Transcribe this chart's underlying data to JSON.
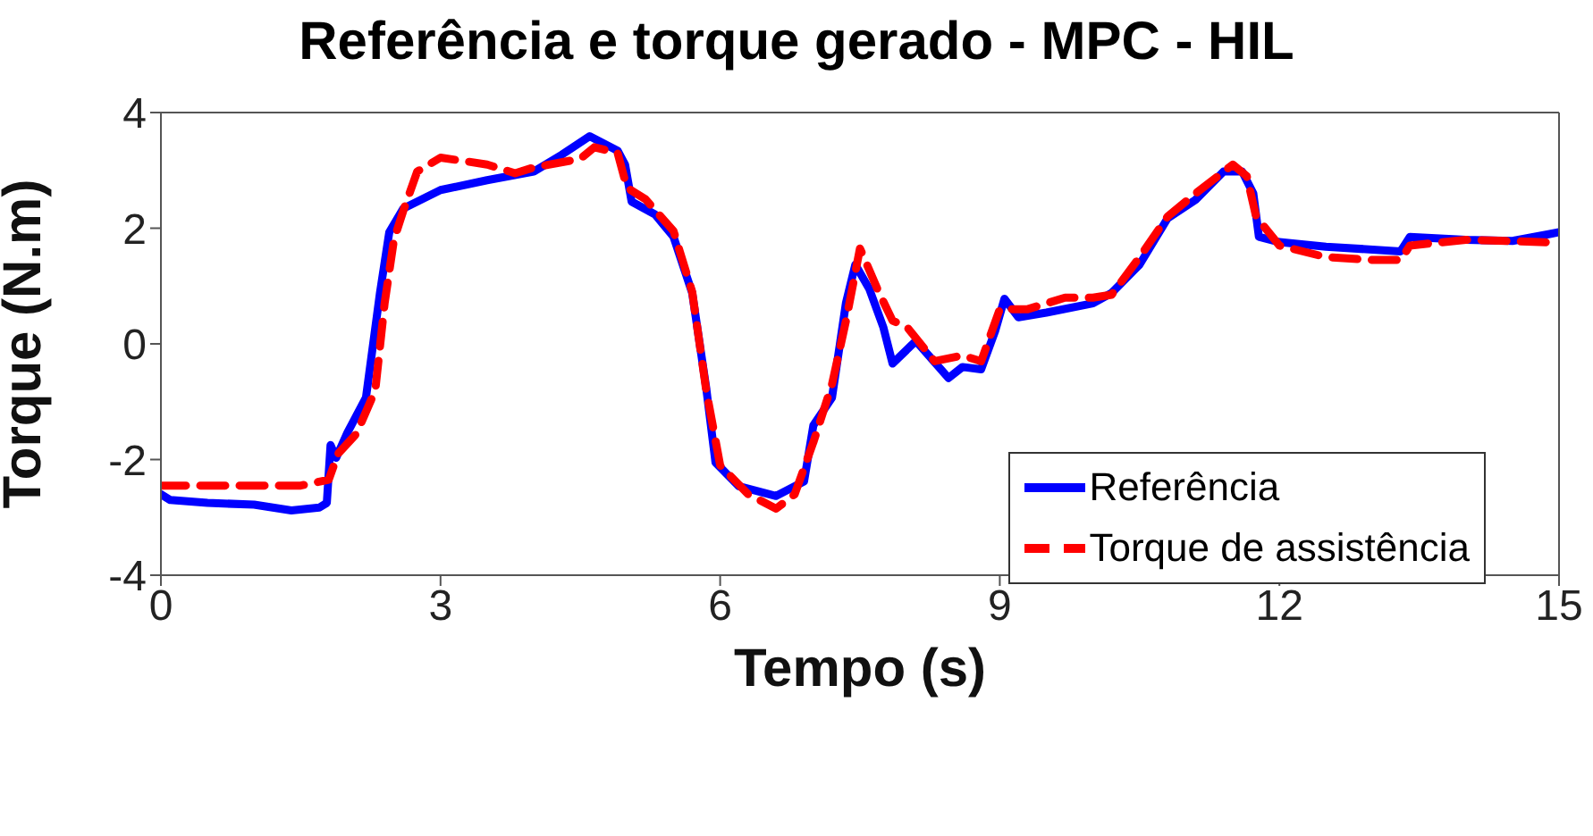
{
  "chart_data": {
    "type": "line",
    "title": "Referência e torque gerado - MPC - HIL",
    "xlabel": "Tempo (s)",
    "ylabel": "Torque (N.m)",
    "xlim": [
      0,
      15
    ],
    "xticks": [
      0,
      3,
      6,
      9,
      12,
      15
    ],
    "ylim": [
      -4,
      4
    ],
    "yticks": [
      -4,
      -2,
      0,
      2,
      4
    ],
    "legend": "bottom right",
    "marker": "none",
    "series": [
      {
        "name": "Referência",
        "color": "#0000ff",
        "line_style": "solid",
        "x": [
          0,
          0.1,
          0.5,
          1.0,
          1.4,
          1.7,
          1.78,
          1.82,
          1.88,
          2.0,
          2.2,
          2.35,
          2.45,
          2.6,
          3.0,
          3.5,
          4.0,
          4.3,
          4.6,
          4.9,
          4.98,
          5.05,
          5.3,
          5.5,
          5.7,
          5.85,
          5.95,
          6.2,
          6.6,
          6.9,
          7.0,
          7.2,
          7.35,
          7.45,
          7.6,
          7.75,
          7.85,
          8.1,
          8.45,
          8.6,
          8.8,
          8.95,
          9.05,
          9.2,
          9.5,
          10.0,
          10.2,
          10.5,
          10.8,
          11.1,
          11.4,
          11.6,
          11.72,
          11.78,
          12.0,
          12.5,
          13.0,
          13.3,
          13.4,
          14.0,
          14.5,
          14.9,
          15.0
        ],
        "values": [
          -2.6,
          -2.7,
          -2.75,
          -2.78,
          -2.88,
          -2.83,
          -2.75,
          -1.75,
          -1.97,
          -1.54,
          -0.93,
          0.88,
          1.93,
          2.34,
          2.66,
          2.83,
          2.98,
          3.27,
          3.59,
          3.34,
          3.1,
          2.46,
          2.24,
          1.85,
          0.88,
          -0.76,
          -2.05,
          -2.46,
          -2.63,
          -2.38,
          -1.41,
          -0.93,
          0.71,
          1.37,
          0.95,
          0.29,
          -0.34,
          0.05,
          -0.59,
          -0.4,
          -0.44,
          0.22,
          0.78,
          0.46,
          0.54,
          0.7,
          0.88,
          1.37,
          2.17,
          2.49,
          2.98,
          2.98,
          2.6,
          1.85,
          1.76,
          1.68,
          1.63,
          1.6,
          1.85,
          1.8,
          1.78,
          1.9,
          1.93
        ]
      },
      {
        "name": "Torque de assistência",
        "color": "#ff0000",
        "line_style": "dashed",
        "x": [
          0,
          0.5,
          1.0,
          1.5,
          1.8,
          1.9,
          2.1,
          2.3,
          2.4,
          2.5,
          2.6,
          2.75,
          3.0,
          3.3,
          3.5,
          3.8,
          4.0,
          4.5,
          4.65,
          4.9,
          5.0,
          5.2,
          5.5,
          5.7,
          5.85,
          6.0,
          6.3,
          6.6,
          6.8,
          7.0,
          7.2,
          7.35,
          7.5,
          7.7,
          7.85,
          8.0,
          8.3,
          8.6,
          8.8,
          9.0,
          9.3,
          9.7,
          10.0,
          10.2,
          10.5,
          10.8,
          11.1,
          11.5,
          11.65,
          11.75,
          12.0,
          12.5,
          13.0,
          13.3,
          13.4,
          14.0,
          15.0
        ],
        "values": [
          -2.45,
          -2.45,
          -2.45,
          -2.45,
          -2.35,
          -1.9,
          -1.55,
          -0.8,
          0.7,
          1.8,
          2.3,
          2.98,
          3.22,
          3.15,
          3.1,
          2.95,
          3.05,
          3.2,
          3.4,
          3.3,
          2.7,
          2.5,
          1.95,
          0.9,
          -0.8,
          -2.1,
          -2.6,
          -2.85,
          -2.6,
          -1.7,
          -0.7,
          0.4,
          1.65,
          0.9,
          0.4,
          0.3,
          -0.3,
          -0.2,
          -0.3,
          0.6,
          0.6,
          0.8,
          0.8,
          0.85,
          1.5,
          2.2,
          2.6,
          3.1,
          2.9,
          2.2,
          1.7,
          1.5,
          1.45,
          1.45,
          1.7,
          1.8,
          1.75
        ]
      }
    ]
  }
}
